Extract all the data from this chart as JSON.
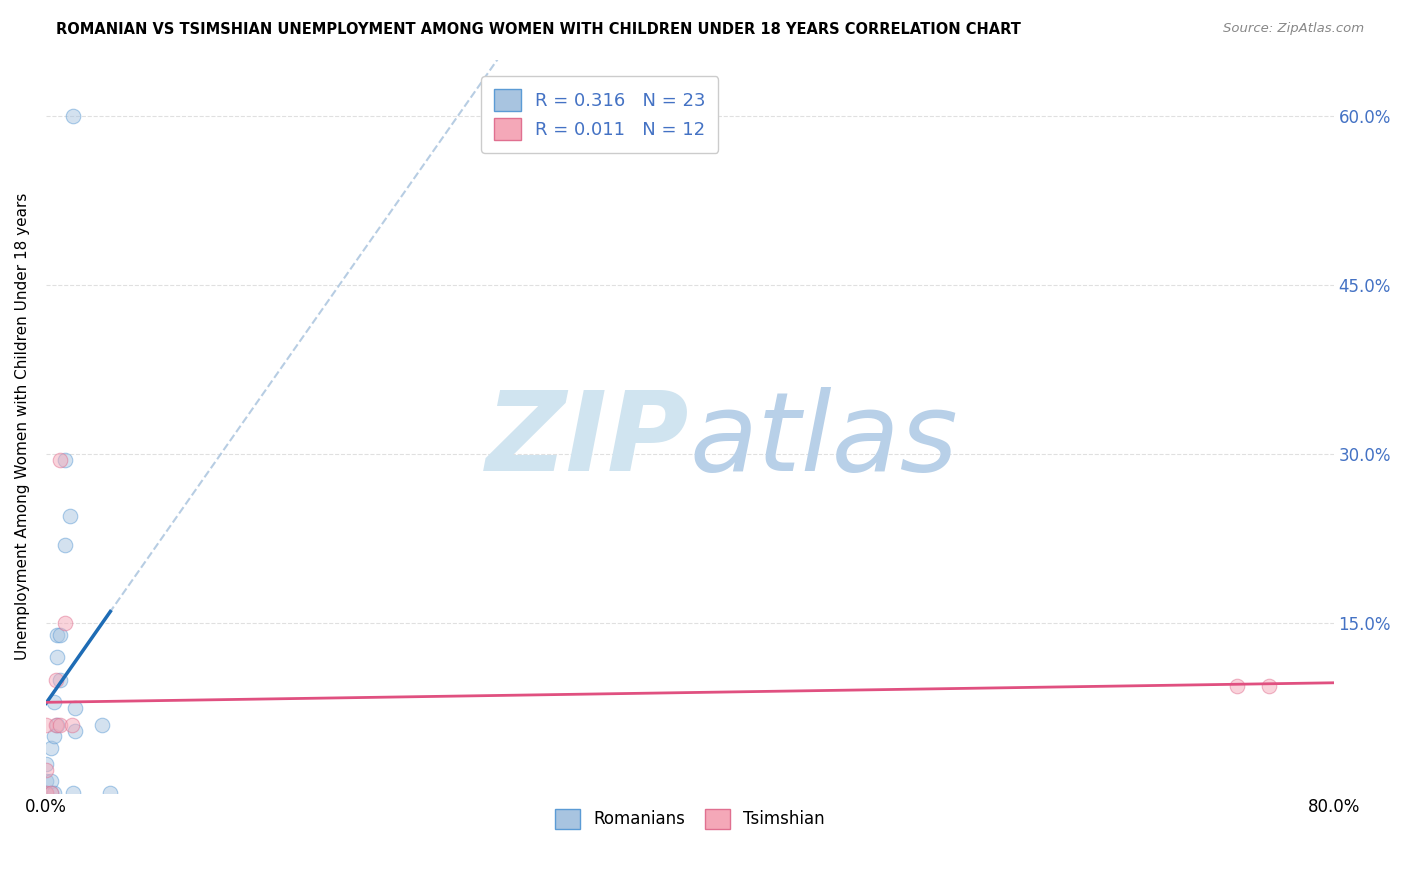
{
  "title": "ROMANIAN VS TSIMSHIAN UNEMPLOYMENT AMONG WOMEN WITH CHILDREN UNDER 18 YEARS CORRELATION CHART",
  "source": "Source: ZipAtlas.com",
  "ylabel": "Unemployment Among Women with Children Under 18 years",
  "xlim": [
    0.0,
    0.8
  ],
  "ylim": [
    0.0,
    0.65
  ],
  "xtick_positions": [
    0.0,
    0.16,
    0.32,
    0.48,
    0.64,
    0.8
  ],
  "xtick_labels": [
    "0.0%",
    "",
    "",
    "",
    "",
    "80.0%"
  ],
  "ytick_positions": [
    0.15,
    0.3,
    0.45,
    0.6
  ],
  "ytick_labels": [
    "15.0%",
    "30.0%",
    "45.0%",
    "60.0%"
  ],
  "romanian_color": "#a8c4e0",
  "tsimshian_color": "#f4a8b8",
  "romanian_edge": "#5b9bd5",
  "tsimshian_edge": "#e07090",
  "trendline_romanian_color": "#1e6cb5",
  "trendline_tsimshian_color": "#e05080",
  "dashed_line_color": "#b0c8e0",
  "watermark_color": "#d0e4f0",
  "legend_color": "#4472c4",
  "romanian_x": [
    0.0,
    0.0,
    0.0,
    0.003,
    0.003,
    0.003,
    0.005,
    0.005,
    0.005,
    0.007,
    0.007,
    0.007,
    0.009,
    0.009,
    0.012,
    0.012,
    0.015,
    0.018,
    0.018,
    0.035,
    0.04,
    0.017,
    0.017
  ],
  "romanian_y": [
    0.0,
    0.01,
    0.025,
    0.0,
    0.01,
    0.04,
    0.0,
    0.05,
    0.08,
    0.06,
    0.12,
    0.14,
    0.1,
    0.14,
    0.22,
    0.295,
    0.245,
    0.055,
    0.075,
    0.06,
    0.0,
    0.6,
    0.0
  ],
  "tsimshian_x": [
    0.0,
    0.0,
    0.0,
    0.003,
    0.006,
    0.006,
    0.009,
    0.009,
    0.012,
    0.016,
    0.74,
    0.76
  ],
  "tsimshian_y": [
    0.0,
    0.02,
    0.06,
    0.0,
    0.06,
    0.1,
    0.06,
    0.295,
    0.15,
    0.06,
    0.095,
    0.095
  ],
  "R_romanian": 0.316,
  "N_romanian": 23,
  "R_tsimshian": 0.011,
  "N_tsimshian": 12,
  "marker_size": 110,
  "alpha": 0.5,
  "grid_color": "#cccccc",
  "grid_linestyle": "--",
  "grid_alpha": 0.6
}
